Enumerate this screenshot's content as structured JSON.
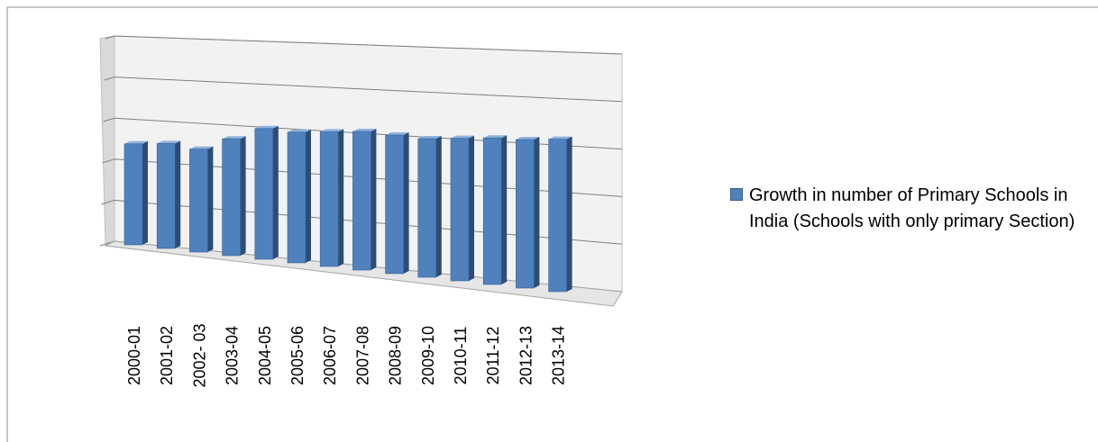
{
  "chart_data": {
    "type": "bar",
    "title": "",
    "xlabel": "",
    "ylabel": "",
    "categories": [
      "2000-01",
      "2001-02",
      "2002- 03",
      "2003-04",
      "2004-05",
      "2005-06",
      "2006-07",
      "2007-08",
      "2008-09",
      "2009-10",
      "2010-11",
      "2011-12",
      "2012-13",
      "2013-14"
    ],
    "series": [
      {
        "name": "Growth in number of Primary Schools in India (Schools with only primary Section)",
        "values": [
          2.55,
          2.65,
          2.6,
          2.95,
          3.3,
          3.3,
          3.4,
          3.5,
          3.5,
          3.5,
          3.6,
          3.7,
          3.75,
          3.85
        ],
        "color": "#4f81bd"
      }
    ],
    "ylim": [
      0,
      5
    ],
    "y_tick_labels_shown": false,
    "grid": true,
    "legend_position": "right",
    "style": "3d-column"
  },
  "colors": {
    "bar_front": "#4f81bd",
    "bar_side": "#2c4d75",
    "bar_top": "#8fb3df",
    "gridline": "#7f7f7f",
    "wall": "#f2f2f2"
  }
}
